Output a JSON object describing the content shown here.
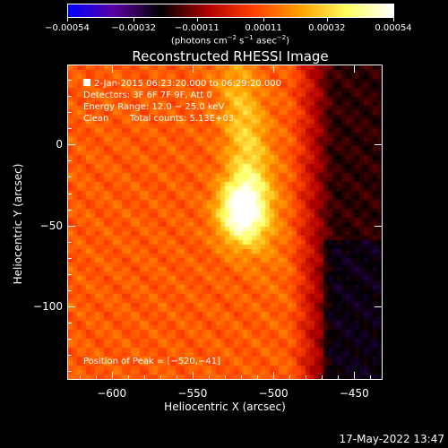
{
  "chart_data": {
    "type": "heatmap",
    "title": "Reconstructed RHESSI Image",
    "xlabel": "Heliocentric X (arcsec)",
    "ylabel": "Heliocentric Y (arcsec)",
    "xlim": [
      -627,
      -433
    ],
    "ylim": [
      -145,
      49
    ],
    "xticks": [
      -600,
      -550,
      -500,
      -450
    ],
    "xtick_labels": [
      "−600",
      "−550",
      "−500",
      "−450"
    ],
    "yticks": [
      0,
      -50,
      -100
    ],
    "ytick_labels": [
      "0",
      "−50",
      "−100"
    ],
    "colorbar": {
      "range": [
        -0.00054,
        0.00054
      ],
      "ticks": [
        -0.00054,
        -0.00032,
        -0.00011,
        0.00011,
        0.00032,
        0.00054
      ],
      "tick_labels": [
        "−0.00054",
        "−0.00032",
        "−0.00011",
        "0.00011",
        "0.00032",
        "0.00054"
      ],
      "units_main": "(photons cm",
      "units_sup1": "−2",
      "units_mid1": " s",
      "units_sup2": "−1",
      "units_mid2": " asec",
      "units_sup3": "−2",
      "units_end": ")",
      "colors": [
        "#0000ff",
        "#5a00a0",
        "#000000",
        "#b00000",
        "#ff4000",
        "#ffa000",
        "#ffff60",
        "#ffffff"
      ]
    },
    "peak": [
      -520,
      -41
    ],
    "annotations": {
      "time": "2-Jan-2015 06:23:20.000 to 06:29:20.000",
      "detectors": "Detectors: 3F 6F 7F 9F, Att 0",
      "energy": "Energy Range: 12.0 − 25.0 keV",
      "method": "Clean",
      "counts": "Total counts: 5.13E+03",
      "peak_label": "Position of Peak = [−520,−41]"
    }
  },
  "footer": {
    "timestamp": "17-May-2022 13:47"
  }
}
